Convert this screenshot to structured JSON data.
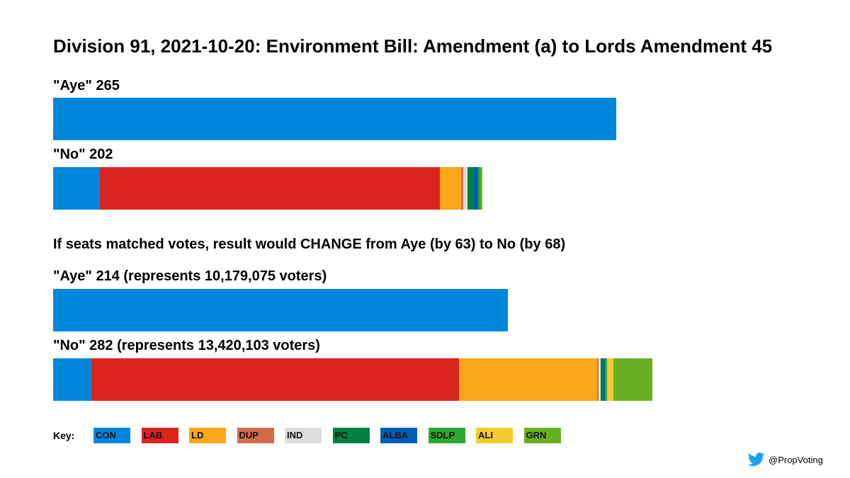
{
  "title": "Division 91, 2021-10-20: Environment Bill: Amendment (a) to Lords Amendment 45",
  "comparison_text": "If seats matched votes, result would CHANGE from Aye (by 63) to No (by 68)",
  "key_label": "Key:",
  "credit": {
    "icon": "twitter-bird-icon",
    "handle": "@PropVoting"
  },
  "parties": [
    {
      "code": "CON",
      "color": "#0087DC"
    },
    {
      "code": "LAB",
      "color": "#DC241F"
    },
    {
      "code": "LD",
      "color": "#FAA61A"
    },
    {
      "code": "DUP",
      "color": "#D46A4C"
    },
    {
      "code": "IND",
      "color": "#DDDDDD"
    },
    {
      "code": "PC",
      "color": "#008142"
    },
    {
      "code": "ALBA",
      "color": "#005EB8"
    },
    {
      "code": "SDLP",
      "color": "#2AA82C"
    },
    {
      "code": "ALI",
      "color": "#F6CB2F"
    },
    {
      "code": "GRN",
      "color": "#6AB023"
    }
  ],
  "chart_data": {
    "type": "bar",
    "orientation": "horizontal-stacked",
    "unit": "seats",
    "scale_max": 320,
    "bars": [
      {
        "label": "\"Aye\" 265",
        "total": 265,
        "segments": [
          {
            "party": "CON",
            "value": 265
          }
        ]
      },
      {
        "label": "\"No\" 202",
        "total": 202,
        "segments": [
          {
            "party": "CON",
            "value": 22
          },
          {
            "party": "LAB",
            "value": 160
          },
          {
            "party": "LD",
            "value": 10
          },
          {
            "party": "DUP",
            "value": 1
          },
          {
            "party": "IND",
            "value": 2
          },
          {
            "party": "PC",
            "value": 3
          },
          {
            "party": "ALBA",
            "value": 2
          },
          {
            "party": "SDLP",
            "value": 1
          },
          {
            "party": "GRN",
            "value": 1
          }
        ]
      },
      {
        "label": "\"Aye\" 214 (represents 10,179,075 voters)",
        "total": 214,
        "segments": [
          {
            "party": "CON",
            "value": 214
          }
        ]
      },
      {
        "label": "\"No\" 282 (represents 13,420,103 voters)",
        "total": 282,
        "segments": [
          {
            "party": "CON",
            "value": 18
          },
          {
            "party": "LAB",
            "value": 173
          },
          {
            "party": "LD",
            "value": 65
          },
          {
            "party": "DUP",
            "value": 0.5
          },
          {
            "party": "IND",
            "value": 1
          },
          {
            "party": "PC",
            "value": 1.5
          },
          {
            "party": "ALBA",
            "value": 0.5
          },
          {
            "party": "SDLP",
            "value": 1
          },
          {
            "party": "ALI",
            "value": 3
          },
          {
            "party": "GRN",
            "value": 18.5
          }
        ]
      }
    ]
  }
}
